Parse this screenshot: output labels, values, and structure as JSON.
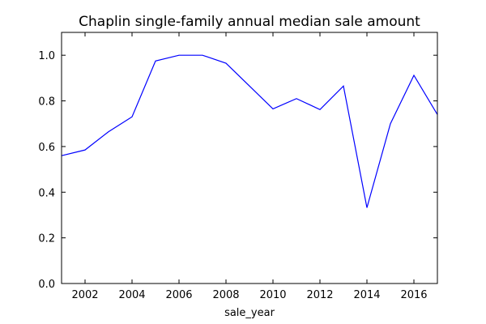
{
  "chart_data": {
    "type": "line",
    "title": "Chaplin single-family annual median sale amount",
    "xlabel": "sale_year",
    "ylabel": "",
    "xlim": [
      2001,
      2017
    ],
    "ylim": [
      0.0,
      1.1
    ],
    "xticks": [
      2002,
      2004,
      2006,
      2008,
      2010,
      2012,
      2014,
      2016
    ],
    "yticks": [
      0.0,
      0.2,
      0.4,
      0.6,
      0.8,
      1.0
    ],
    "xtick_labels": [
      "2002",
      "2004",
      "2006",
      "2008",
      "2010",
      "2012",
      "2014",
      "2016"
    ],
    "ytick_labels": [
      "0.0",
      "0.2",
      "0.4",
      "0.6",
      "0.8",
      "1.0"
    ],
    "grid": false,
    "line_color": "#0000ff",
    "series": [
      {
        "x": [
          2001,
          2002,
          2003,
          2004,
          2005,
          2006,
          2007,
          2008,
          2009,
          2010,
          2011,
          2012,
          2013,
          2014,
          2015,
          2016,
          2017
        ],
        "values": [
          0.56,
          0.585,
          0.665,
          0.73,
          0.975,
          1.0,
          1.0,
          0.965,
          0.865,
          0.765,
          0.81,
          0.762,
          0.865,
          0.332,
          0.7,
          0.912,
          0.74
        ]
      }
    ]
  }
}
